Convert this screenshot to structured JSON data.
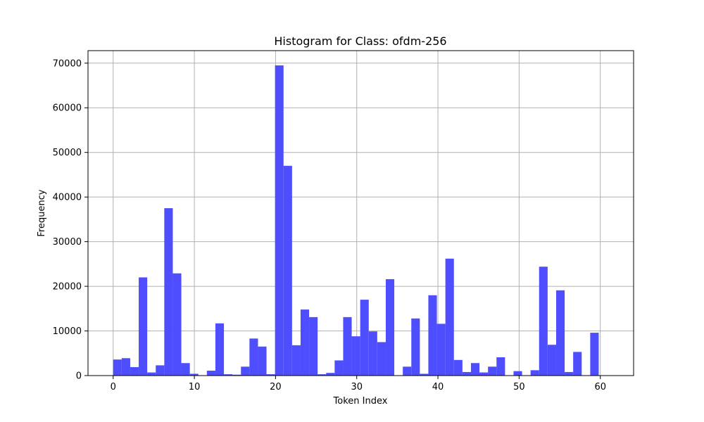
{
  "chart_data": {
    "type": "bar",
    "title": "Histogram for Class: ofdm-256",
    "xlabel": "Token Index",
    "ylabel": "Frequency",
    "xlim": [
      -3.1,
      64.1
    ],
    "ylim": [
      0,
      72800
    ],
    "xticks": [
      "0",
      "10",
      "20",
      "30",
      "40",
      "50",
      "60"
    ],
    "yticks": [
      "0",
      "10000",
      "20000",
      "30000",
      "40000",
      "50000",
      "60000",
      "70000"
    ],
    "grid": true,
    "color": "#4a4aff",
    "bin_start": 0,
    "bin_width": 1.0492,
    "values": [
      3600,
      3900,
      1900,
      22000,
      700,
      2300,
      37500,
      22900,
      2800,
      400,
      0,
      1100,
      11700,
      300,
      200,
      2000,
      8300,
      6500,
      300,
      69500,
      47000,
      6800,
      14800,
      13100,
      300,
      600,
      3400,
      13100,
      8800,
      17000,
      9900,
      7500,
      21600,
      0,
      2000,
      12800,
      400,
      18000,
      11600,
      26200,
      3500,
      800,
      2800,
      700,
      2000,
      4100,
      0,
      1000,
      0,
      1200,
      24400,
      6900,
      19100,
      800,
      5300,
      0,
      9600
    ]
  }
}
